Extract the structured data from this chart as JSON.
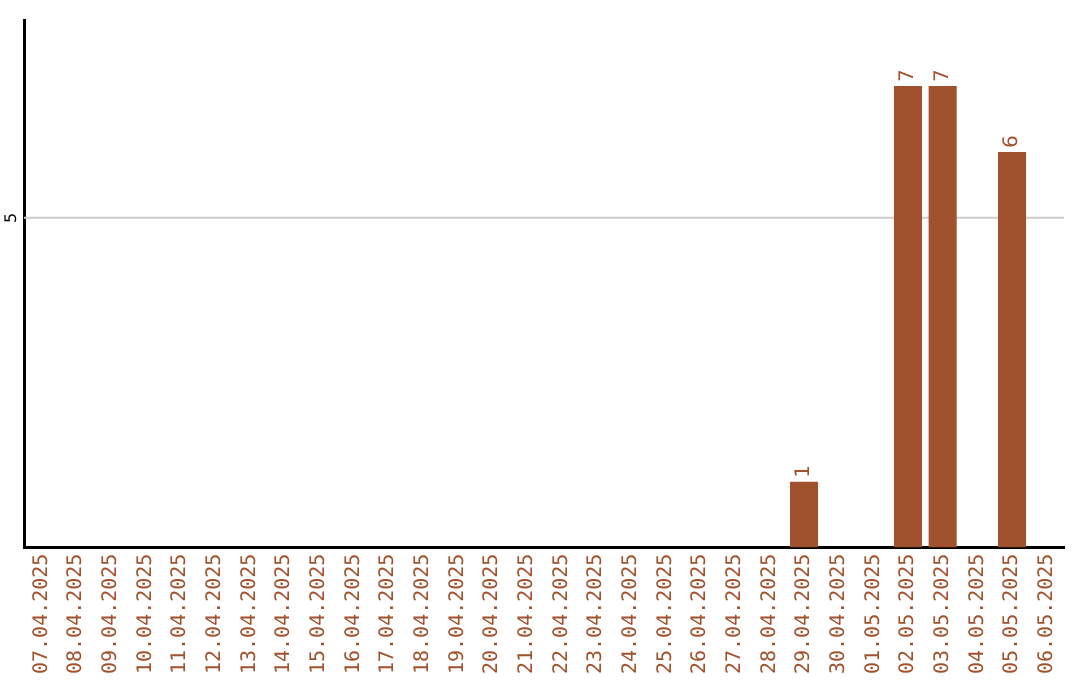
{
  "chart_data": {
    "type": "bar",
    "categories": [
      "07.04.2025",
      "08.04.2025",
      "09.04.2025",
      "10.04.2025",
      "11.04.2025",
      "12.04.2025",
      "13.04.2025",
      "14.04.2025",
      "15.04.2025",
      "16.04.2025",
      "17.04.2025",
      "18.04.2025",
      "19.04.2025",
      "20.04.2025",
      "21.04.2025",
      "22.04.2025",
      "23.04.2025",
      "24.04.2025",
      "25.04.2025",
      "26.04.2025",
      "27.04.2025",
      "28.04.2025",
      "29.04.2025",
      "30.04.2025",
      "01.05.2025",
      "02.05.2025",
      "03.05.2025",
      "04.05.2025",
      "05.05.2025",
      "06.05.2025"
    ],
    "values": [
      null,
      null,
      null,
      null,
      null,
      null,
      null,
      null,
      null,
      null,
      null,
      null,
      null,
      null,
      null,
      null,
      null,
      null,
      null,
      null,
      null,
      null,
      1,
      null,
      null,
      7,
      7,
      null,
      6,
      null
    ],
    "data_labels": true,
    "color": "#a0522d",
    "ref_lines": [
      {
        "axis": "y",
        "value": 5,
        "label": "5",
        "color": "#cccccc"
      }
    ],
    "legend": false
  }
}
